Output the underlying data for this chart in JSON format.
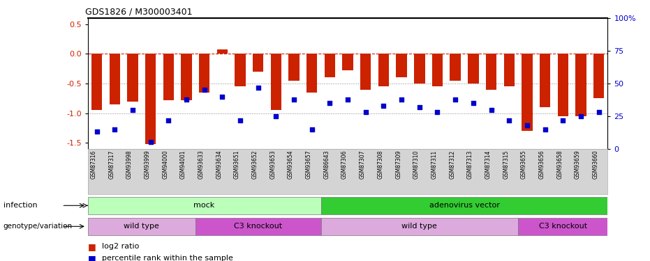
{
  "title": "GDS1826 / M300003401",
  "samples": [
    "GSM87316",
    "GSM87317",
    "GSM93998",
    "GSM93999",
    "GSM94000",
    "GSM94001",
    "GSM93633",
    "GSM93634",
    "GSM93651",
    "GSM93652",
    "GSM93653",
    "GSM93654",
    "GSM93657",
    "GSM86643",
    "GSM87306",
    "GSM87307",
    "GSM87308",
    "GSM87309",
    "GSM87310",
    "GSM87311",
    "GSM87312",
    "GSM87313",
    "GSM87314",
    "GSM87315",
    "GSM93655",
    "GSM93656",
    "GSM93658",
    "GSM93659",
    "GSM93660"
  ],
  "log2_ratio": [
    -0.95,
    -0.85,
    -0.8,
    -1.52,
    -0.78,
    -0.78,
    -0.65,
    0.07,
    -0.55,
    -0.3,
    -0.95,
    -0.45,
    -0.65,
    -0.4,
    -0.28,
    -0.6,
    -0.55,
    -0.4,
    -0.5,
    -0.55,
    -0.45,
    -0.5,
    -0.6,
    -0.55,
    -1.3,
    -0.9,
    -1.05,
    -1.05,
    -0.75
  ],
  "percentile": [
    13,
    15,
    30,
    5,
    22,
    38,
    45,
    40,
    22,
    47,
    25,
    38,
    15,
    35,
    38,
    28,
    33,
    38,
    32,
    28,
    38,
    35,
    30,
    22,
    18,
    15,
    22,
    25,
    28
  ],
  "bar_color": "#cc2200",
  "dot_color": "#0000cc",
  "dashed_color": "#cc2200",
  "ylim_left": [
    -1.6,
    0.6
  ],
  "ylim_right": [
    0,
    100
  ],
  "yticks_left": [
    -1.5,
    -1.0,
    -0.5,
    0.0,
    0.5
  ],
  "yticks_right": [
    0,
    25,
    50,
    75,
    100
  ],
  "infection_groups": [
    {
      "label": "mock",
      "start": 0,
      "end": 12,
      "color": "#bbffbb"
    },
    {
      "label": "adenovirus vector",
      "start": 13,
      "end": 28,
      "color": "#33cc33"
    }
  ],
  "genotype_groups": [
    {
      "label": "wild type",
      "start": 0,
      "end": 5,
      "color": "#ddaadd"
    },
    {
      "label": "C3 knockout",
      "start": 6,
      "end": 12,
      "color": "#cc55cc"
    },
    {
      "label": "wild type",
      "start": 13,
      "end": 23,
      "color": "#ddaadd"
    },
    {
      "label": "C3 knockout",
      "start": 24,
      "end": 28,
      "color": "#cc55cc"
    }
  ],
  "legend_log2_label": "log2 ratio",
  "legend_pct_label": "percentile rank within the sample"
}
